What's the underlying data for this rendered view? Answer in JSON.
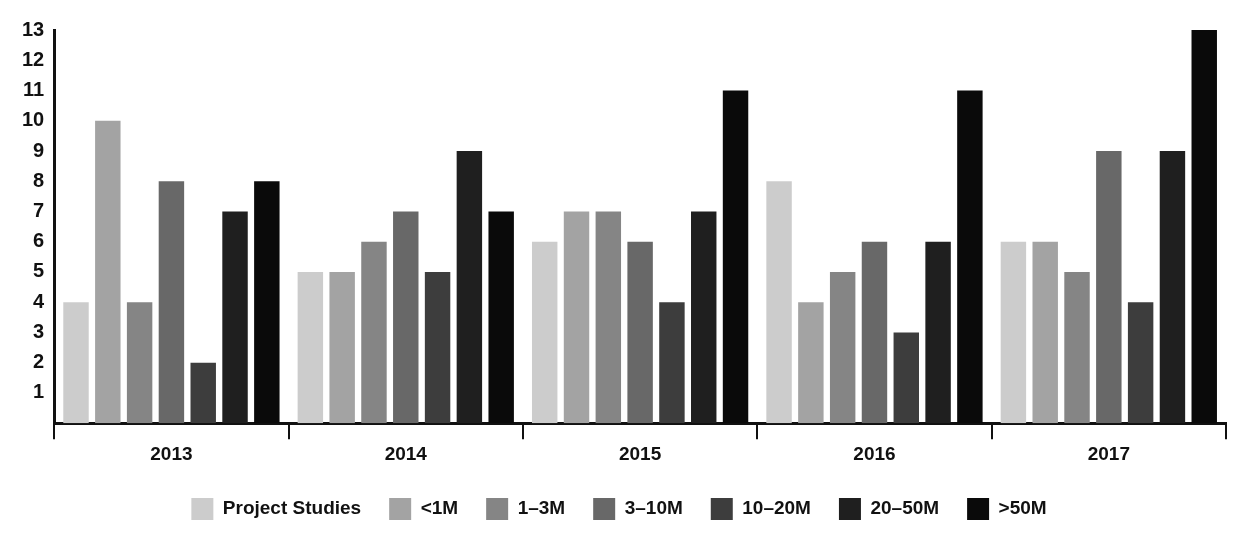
{
  "chart_data": {
    "type": "bar",
    "categories": [
      "2013",
      "2014",
      "2015",
      "2016",
      "2017"
    ],
    "series": [
      {
        "name": "Project Studies",
        "color": "#cccccc",
        "values": [
          4,
          5,
          6,
          8,
          6
        ]
      },
      {
        "name": "<1M",
        "color": "#a3a3a3",
        "values": [
          10,
          5,
          7,
          4,
          6
        ]
      },
      {
        "name": "1–3M",
        "color": "#858585",
        "values": [
          4,
          6,
          7,
          5,
          5
        ]
      },
      {
        "name": "3–10M",
        "color": "#686868",
        "values": [
          8,
          7,
          6,
          6,
          9
        ]
      },
      {
        "name": "10–20M",
        "color": "#3d3d3d",
        "values": [
          2,
          5,
          4,
          3,
          4
        ]
      },
      {
        "name": "20–50M",
        "color": "#1f1f1f",
        "values": [
          7,
          9,
          7,
          6,
          9
        ]
      },
      {
        "name": ">50M",
        "color": "#0a0a0a",
        "values": [
          8,
          7,
          11,
          11,
          13
        ]
      }
    ],
    "ylim": [
      0,
      13
    ],
    "yticks": [
      1,
      2,
      3,
      4,
      5,
      6,
      7,
      8,
      9,
      10,
      11,
      12,
      13
    ],
    "grid": false,
    "legend": "bottom"
  }
}
